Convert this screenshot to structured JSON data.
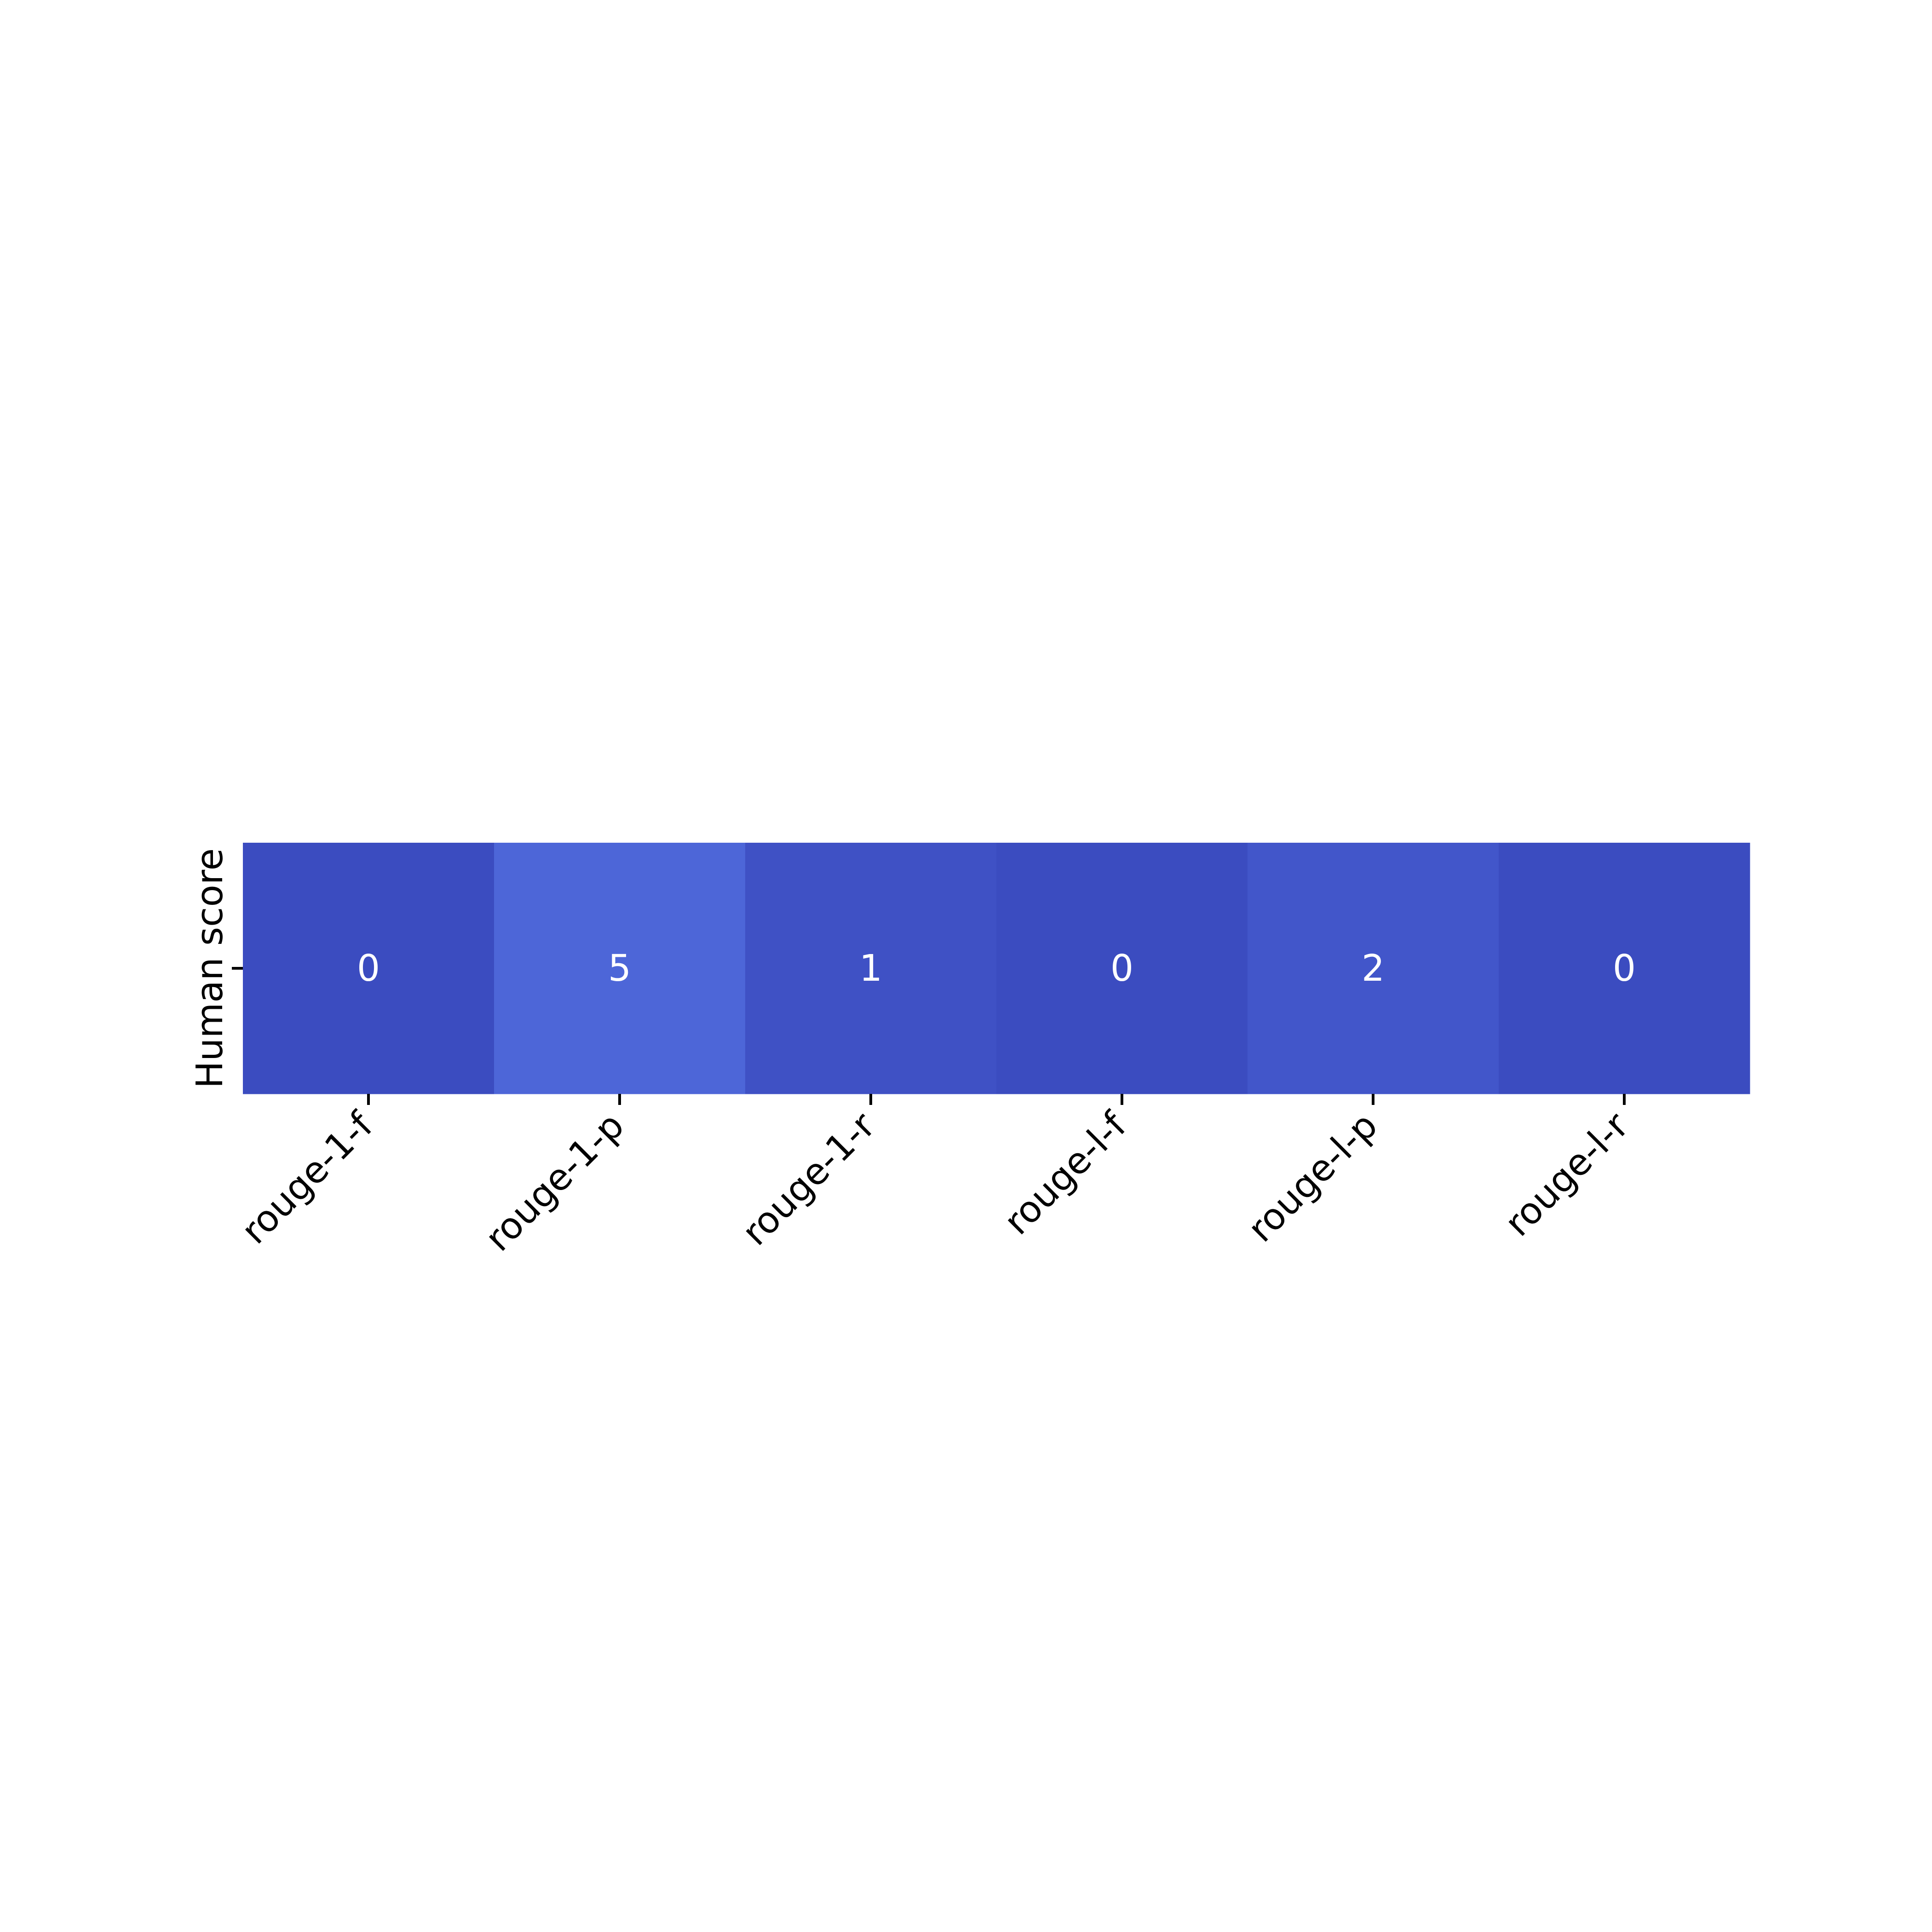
{
  "chart_data": {
    "type": "heatmap",
    "rows": [
      "Human score"
    ],
    "columns": [
      "rouge-1-f",
      "rouge-1-p",
      "rouge-1-r",
      "rouge-l-f",
      "rouge-l-p",
      "rouge-l-r"
    ],
    "values": [
      [
        0,
        5,
        1,
        0,
        2,
        0
      ]
    ],
    "cell_labels": [
      [
        "0",
        "5",
        "1",
        "0",
        "2",
        "0"
      ]
    ],
    "colormap": "coolwarm",
    "colors": {
      "low": "#3b4cc0",
      "high": "#4d66d8",
      "annotation_text": "#ffffff"
    },
    "colorbar": false
  }
}
